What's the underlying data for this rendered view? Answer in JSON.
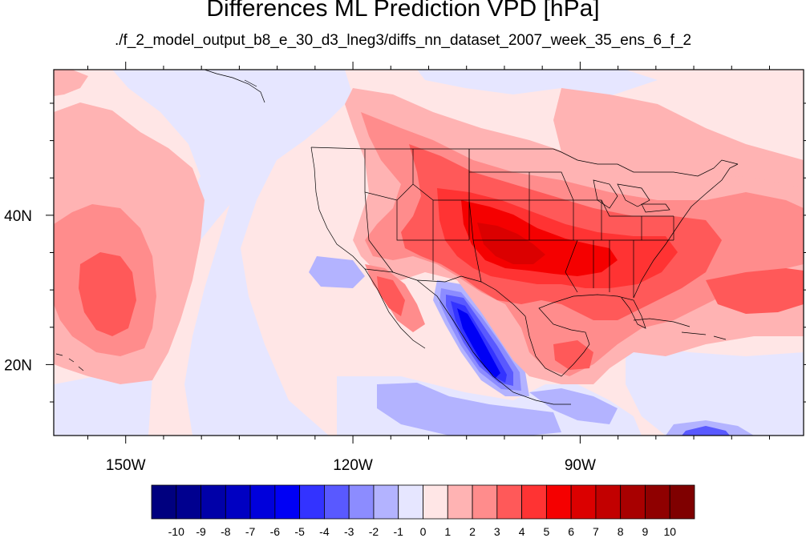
{
  "chart_data": {
    "type": "heatmap",
    "title": "Differences ML Prediction VPD [hPa]",
    "subtitle": "./f_2_model_output_b8_e_30_d3_lneg3/diffs_nn_dataset_2007_week_35_ens_6_f_2",
    "x_tick_labels": [
      "150W",
      "120W",
      "90W"
    ],
    "x_tick_values": [
      -150,
      -120,
      -90
    ],
    "y_tick_labels": [
      "20N",
      "40N"
    ],
    "y_tick_values": [
      20,
      40
    ],
    "lon_range": [
      -159.5,
      -60.5
    ],
    "lat_range": [
      10.5,
      59.5
    ],
    "colorbar": {
      "labels": [
        "-10",
        "-9",
        "-8",
        "-7",
        "-6",
        "-5",
        "-4",
        "-3",
        "-2",
        "-1",
        "0",
        "1",
        "2",
        "3",
        "4",
        "5",
        "6",
        "7",
        "8",
        "9",
        "10"
      ],
      "colors": [
        "#00007f",
        "#00008f",
        "#0000a8",
        "#0000c2",
        "#0000db",
        "#0000f5",
        "#3333ff",
        "#5959ff",
        "#8c8cff",
        "#b3b3ff",
        "#e6e6ff",
        "#ffe6e6",
        "#ffb3b3",
        "#ff8c8c",
        "#ff5959",
        "#ff3333",
        "#f50000",
        "#db0000",
        "#c20000",
        "#a80000",
        "#8f0000",
        "#7f0000"
      ]
    },
    "features": [
      {
        "name": "Central United States",
        "lon": -100,
        "lat": 37,
        "value": 5.5
      },
      {
        "name": "Southeastern United States",
        "lon": -85,
        "lat": 33,
        "value": 5
      },
      {
        "name": "Gulf of Mexico",
        "lon": -92,
        "lat": 25,
        "value": 2.5
      },
      {
        "name": "Gulf of California and western Mexico",
        "lon": -108,
        "lat": 24,
        "value": -5.5
      },
      {
        "name": "Subtropical northeast Pacific",
        "lon": -151,
        "lat": 31,
        "value": 3
      },
      {
        "name": "Central America",
        "lon": -88,
        "lat": 14,
        "value": -3
      },
      {
        "name": "Subtropical western Atlantic",
        "lon": -67,
        "lat": 30,
        "value": 3.5
      },
      {
        "name": "Eastern tropical Pacific",
        "lon": -115,
        "lat": 14,
        "value": -2
      }
    ]
  }
}
